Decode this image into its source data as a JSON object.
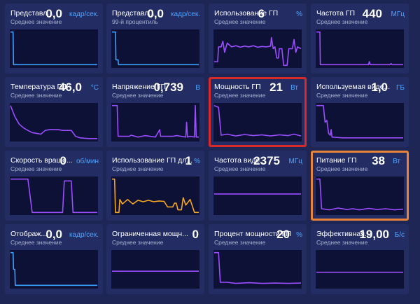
{
  "tiles": [
    {
      "id": "fps-avg",
      "title": "Представл...",
      "subtitle": "Среднее значение",
      "value": "0,0",
      "unit": "кадр/сек.",
      "color": "#3aa0ff",
      "points": [
        [
          0,
          0.05
        ],
        [
          0.03,
          0.05
        ],
        [
          0.035,
          0.93
        ],
        [
          1,
          0.93
        ]
      ]
    },
    {
      "id": "fps-99",
      "title": "Представл...",
      "subtitle": "99-й процентиль",
      "value": "0,0",
      "unit": "кадр/сек.",
      "color": "#3aa0ff",
      "points": [
        [
          0,
          0.05
        ],
        [
          0.04,
          0.05
        ],
        [
          0.045,
          0.8
        ],
        [
          0.07,
          0.8
        ],
        [
          0.075,
          0.93
        ],
        [
          1,
          0.93
        ]
      ]
    },
    {
      "id": "gpu-usage",
      "title": "Использование ГП",
      "subtitle": "Среднее значение",
      "value": "6",
      "unit": "%",
      "color": "#9b4dff",
      "points": [
        [
          0,
          0.85
        ],
        [
          0.04,
          0.85
        ],
        [
          0.05,
          0.45
        ],
        [
          0.08,
          0.45
        ],
        [
          0.1,
          0.3
        ],
        [
          0.12,
          0.6
        ],
        [
          0.15,
          0.35
        ],
        [
          0.2,
          0.45
        ],
        [
          0.25,
          0.42
        ],
        [
          0.3,
          0.46
        ],
        [
          0.35,
          0.43
        ],
        [
          0.4,
          0.45
        ],
        [
          0.45,
          0.42
        ],
        [
          0.5,
          0.46
        ],
        [
          0.55,
          0.44
        ],
        [
          0.6,
          0.45
        ],
        [
          0.65,
          0.43
        ],
        [
          0.66,
          0.2
        ],
        [
          0.68,
          0.5
        ],
        [
          0.7,
          0.45
        ],
        [
          0.72,
          0.75
        ],
        [
          0.74,
          0.75
        ],
        [
          0.75,
          0.5
        ],
        [
          0.78,
          0.5
        ],
        [
          0.8,
          0.95
        ],
        [
          0.84,
          0.95
        ],
        [
          0.86,
          0.5
        ],
        [
          0.9,
          0.5
        ],
        [
          0.92,
          0.25
        ],
        [
          0.94,
          0.6
        ],
        [
          0.96,
          0.45
        ],
        [
          1,
          0.5
        ]
      ]
    },
    {
      "id": "gpu-freq",
      "title": "Частота ГП",
      "subtitle": "Среднее значение",
      "value": "440",
      "unit": "МГц",
      "color": "#9b4dff",
      "points": [
        [
          0,
          0.05
        ],
        [
          0.04,
          0.05
        ],
        [
          0.045,
          0.93
        ],
        [
          0.6,
          0.93
        ],
        [
          0.61,
          0.85
        ],
        [
          0.62,
          0.93
        ],
        [
          0.85,
          0.93
        ],
        [
          0.86,
          0.9
        ],
        [
          0.87,
          0.93
        ],
        [
          1,
          0.93
        ]
      ]
    },
    {
      "id": "gpu-temp",
      "title": "Температура ГП",
      "subtitle": "Среднее значение",
      "value": "46,0",
      "unit": "°C",
      "color": "#9b4dff",
      "points": [
        [
          0,
          0.05
        ],
        [
          0.05,
          0.35
        ],
        [
          0.1,
          0.55
        ],
        [
          0.15,
          0.65
        ],
        [
          0.2,
          0.72
        ],
        [
          0.25,
          0.78
        ],
        [
          0.3,
          0.8
        ],
        [
          0.35,
          0.82
        ],
        [
          0.4,
          0.72
        ],
        [
          0.45,
          0.7
        ],
        [
          0.5,
          0.7
        ],
        [
          0.55,
          0.7
        ],
        [
          0.6,
          0.72
        ],
        [
          0.65,
          0.72
        ],
        [
          0.7,
          0.72
        ],
        [
          0.75,
          0.88
        ],
        [
          0.8,
          0.92
        ],
        [
          0.85,
          0.93
        ],
        [
          0.9,
          0.94
        ],
        [
          0.95,
          0.94
        ],
        [
          1,
          0.94
        ]
      ]
    },
    {
      "id": "gpu-voltage",
      "title": "Напряжение ГП",
      "subtitle": "Среднее значение",
      "value": "0,739",
      "unit": "В",
      "color": "#9b4dff",
      "points": [
        [
          0,
          0.05
        ],
        [
          0.06,
          0.05
        ],
        [
          0.07,
          0.88
        ],
        [
          0.2,
          0.88
        ],
        [
          0.22,
          0.85
        ],
        [
          0.3,
          0.9
        ],
        [
          0.38,
          0.86
        ],
        [
          0.5,
          0.9
        ],
        [
          0.55,
          0.7
        ],
        [
          0.56,
          0.88
        ],
        [
          0.7,
          0.88
        ],
        [
          0.75,
          0.86
        ],
        [
          0.85,
          0.9
        ],
        [
          0.86,
          0.5
        ],
        [
          0.87,
          0.9
        ],
        [
          0.9,
          0.88
        ],
        [
          0.95,
          0.9
        ],
        [
          0.96,
          0.05
        ],
        [
          0.97,
          0.9
        ],
        [
          1,
          0.9
        ]
      ]
    },
    {
      "id": "gpu-power",
      "title": "Мощность ГП",
      "subtitle": "Среднее значение",
      "value": "21",
      "unit": "Вт",
      "color": "#9b4dff",
      "points": [
        [
          0,
          0.05
        ],
        [
          0.05,
          0.1
        ],
        [
          0.08,
          0.85
        ],
        [
          0.15,
          0.82
        ],
        [
          0.25,
          0.87
        ],
        [
          0.35,
          0.83
        ],
        [
          0.45,
          0.86
        ],
        [
          0.55,
          0.84
        ],
        [
          0.65,
          0.87
        ],
        [
          0.75,
          0.84
        ],
        [
          0.85,
          0.86
        ],
        [
          0.92,
          0.82
        ],
        [
          1,
          0.87
        ]
      ]
    },
    {
      "id": "vram-used",
      "title": "Используемая виде...",
      "subtitle": "Среднее значение",
      "value": "1,0",
      "unit": "ГБ",
      "color": "#9b4dff",
      "points": [
        [
          0,
          0.05
        ],
        [
          0.08,
          0.05
        ],
        [
          0.1,
          0.5
        ],
        [
          0.12,
          0.45
        ],
        [
          0.14,
          0.8
        ],
        [
          0.16,
          0.85
        ],
        [
          0.17,
          0.7
        ],
        [
          0.18,
          0.9
        ],
        [
          0.3,
          0.92
        ],
        [
          1,
          0.92
        ]
      ]
    },
    {
      "id": "fan-speed",
      "title": "Скорость враще...",
      "subtitle": "Среднее значение",
      "value": "0",
      "unit": "об/мин",
      "color": "#9b4dff",
      "points": [
        [
          0,
          0.05
        ],
        [
          0.2,
          0.05
        ],
        [
          0.22,
          0.4
        ],
        [
          0.25,
          0.95
        ],
        [
          0.6,
          0.95
        ],
        [
          0.62,
          0.1
        ],
        [
          0.7,
          0.1
        ],
        [
          0.72,
          0.95
        ],
        [
          1,
          0.95
        ]
      ]
    },
    {
      "id": "gpu-usage-3d",
      "title": "Использование ГП дл...",
      "subtitle": "Среднее значение",
      "value": "1",
      "unit": "%",
      "color": "#f5a623",
      "points": [
        [
          0,
          0.05
        ],
        [
          0.03,
          0.05
        ],
        [
          0.04,
          0.95
        ],
        [
          0.08,
          0.95
        ],
        [
          0.09,
          0.6
        ],
        [
          0.12,
          0.72
        ],
        [
          0.18,
          0.6
        ],
        [
          0.24,
          0.72
        ],
        [
          0.3,
          0.62
        ],
        [
          0.36,
          0.66
        ],
        [
          0.42,
          0.62
        ],
        [
          0.48,
          0.66
        ],
        [
          0.54,
          0.64
        ],
        [
          0.6,
          0.65
        ],
        [
          0.64,
          0.8
        ],
        [
          0.7,
          0.8
        ],
        [
          0.72,
          0.7
        ],
        [
          0.74,
          0.7
        ],
        [
          0.76,
          0.88
        ],
        [
          0.8,
          0.88
        ],
        [
          0.82,
          0.55
        ],
        [
          0.85,
          0.75
        ],
        [
          0.9,
          0.6
        ],
        [
          0.95,
          0.95
        ],
        [
          1,
          0.95
        ]
      ]
    },
    {
      "id": "video-freq",
      "title": "Частота виде...",
      "subtitle": "Среднее значение",
      "value": "2375",
      "unit": "МГц",
      "color": "#9b4dff",
      "points": [
        [
          0,
          0.45
        ],
        [
          1,
          0.45
        ]
      ]
    },
    {
      "id": "gpu-supply",
      "title": "Питание ГП",
      "subtitle": "Среднее значение",
      "value": "38",
      "unit": "Вт",
      "color": "#9b4dff",
      "points": [
        [
          0,
          0.05
        ],
        [
          0.04,
          0.05
        ],
        [
          0.06,
          0.85
        ],
        [
          0.15,
          0.88
        ],
        [
          0.25,
          0.83
        ],
        [
          0.35,
          0.87
        ],
        [
          0.42,
          0.85
        ],
        [
          0.5,
          0.88
        ],
        [
          0.6,
          0.84
        ],
        [
          0.7,
          0.87
        ],
        [
          0.8,
          0.85
        ],
        [
          0.9,
          0.88
        ],
        [
          1,
          0.86
        ]
      ]
    },
    {
      "id": "display",
      "title": "Отображ...",
      "subtitle": "Среднее значение",
      "value": "0,0",
      "unit": "кадр/сек.",
      "color": "#3aa0ff",
      "points": [
        [
          0,
          0.05
        ],
        [
          0.03,
          0.05
        ],
        [
          0.035,
          0.5
        ],
        [
          0.05,
          0.5
        ],
        [
          0.055,
          0.93
        ],
        [
          1,
          0.93
        ]
      ]
    },
    {
      "id": "power-limit",
      "title": "Ограниченная мощн...",
      "subtitle": "Среднее значение",
      "value": "0",
      "unit": "",
      "color": "#9b4dff",
      "points": [
        [
          0,
          0.55
        ],
        [
          1,
          0.55
        ]
      ]
    },
    {
      "id": "power-pct",
      "title": "Процент мощности ГП",
      "subtitle": "Среднее значение",
      "value": "20",
      "unit": "%",
      "color": "#9b4dff",
      "points": [
        [
          0,
          0.05
        ],
        [
          0.05,
          0.05
        ],
        [
          0.07,
          0.85
        ],
        [
          0.15,
          0.85
        ],
        [
          0.25,
          0.88
        ],
        [
          0.4,
          0.86
        ],
        [
          0.55,
          0.88
        ],
        [
          0.7,
          0.87
        ],
        [
          0.85,
          0.88
        ],
        [
          1,
          0.87
        ]
      ]
    },
    {
      "id": "effective",
      "title": "Эффективная...",
      "subtitle": "Среднее значение",
      "value": "19,00",
      "unit": "Б/с",
      "color": "#9b4dff",
      "points": [
        [
          0,
          0.58
        ],
        [
          1,
          0.58
        ]
      ]
    }
  ]
}
